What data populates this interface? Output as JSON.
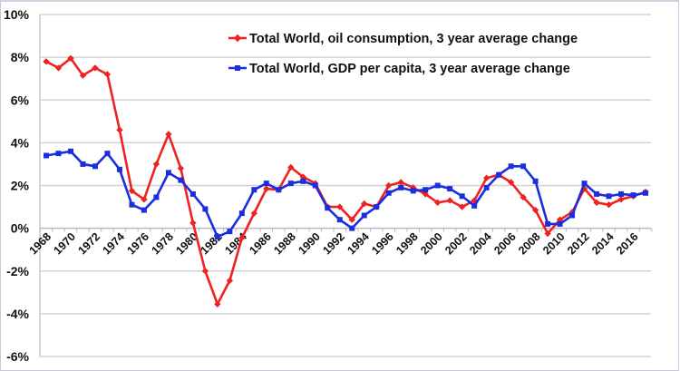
{
  "chart_data": {
    "type": "line",
    "title": "",
    "xlabel": "",
    "ylabel": "",
    "ylim": [
      -6,
      10
    ],
    "yticks": [
      "10%",
      "8%",
      "6%",
      "4%",
      "2%",
      "0%",
      "-2%",
      "-4%",
      "-6%"
    ],
    "ytick_values": [
      10,
      8,
      6,
      4,
      2,
      0,
      -2,
      -4,
      -6
    ],
    "xtick_labels": [
      "1968",
      "1970",
      "1972",
      "1974",
      "1976",
      "1978",
      "1980",
      "1982",
      "1984",
      "1986",
      "1988",
      "1990",
      "1992",
      "1994",
      "1996",
      "1998",
      "2000",
      "2002",
      "2004",
      "2006",
      "2008",
      "2010",
      "2012",
      "2014",
      "2016"
    ],
    "grid": true,
    "legend_position": "top-center",
    "x": [
      1968,
      1969,
      1970,
      1971,
      1972,
      1973,
      1974,
      1975,
      1976,
      1977,
      1978,
      1979,
      1980,
      1981,
      1982,
      1983,
      1984,
      1985,
      1986,
      1987,
      1988,
      1989,
      1990,
      1991,
      1992,
      1993,
      1994,
      1995,
      1996,
      1997,
      1998,
      1999,
      2000,
      2001,
      2002,
      2003,
      2004,
      2005,
      2006,
      2007,
      2008,
      2009,
      2010,
      2011,
      2012,
      2013,
      2014,
      2015,
      2016,
      2017
    ],
    "series": [
      {
        "name": "Total World, oil consumption, 3 year average change",
        "color": "#ee2222",
        "marker": "diamond",
        "values": [
          7.8,
          7.5,
          7.95,
          7.15,
          7.5,
          7.2,
          4.6,
          1.75,
          1.35,
          3.0,
          4.4,
          2.8,
          0.25,
          -2.0,
          -3.55,
          -2.45,
          -0.45,
          0.7,
          1.85,
          1.8,
          2.85,
          2.4,
          2.1,
          1.0,
          1.0,
          0.4,
          1.15,
          1.0,
          2.0,
          2.15,
          1.9,
          1.6,
          1.2,
          1.3,
          1.0,
          1.3,
          2.35,
          2.5,
          2.15,
          1.45,
          0.85,
          -0.25,
          0.4,
          0.75,
          1.85,
          1.2,
          1.1,
          1.35,
          1.5,
          1.7
        ]
      },
      {
        "name": "Total World, GDP per capita, 3 year average change",
        "color": "#1a2edd",
        "marker": "square",
        "values": [
          3.4,
          3.5,
          3.6,
          3.0,
          2.9,
          3.5,
          2.75,
          1.1,
          0.85,
          1.45,
          2.6,
          2.25,
          1.6,
          0.9,
          -0.4,
          -0.15,
          0.7,
          1.8,
          2.1,
          1.8,
          2.1,
          2.2,
          2.0,
          0.95,
          0.4,
          0.0,
          0.6,
          1.0,
          1.65,
          1.9,
          1.75,
          1.8,
          2.0,
          1.85,
          1.5,
          1.05,
          1.9,
          2.5,
          2.9,
          2.9,
          2.2,
          0.2,
          0.2,
          0.6,
          2.1,
          1.6,
          1.5,
          1.6,
          1.55,
          1.65
        ]
      }
    ]
  }
}
